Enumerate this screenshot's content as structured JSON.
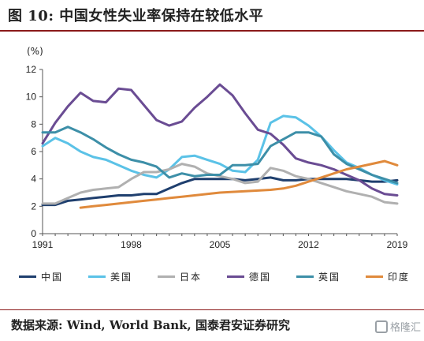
{
  "header": {
    "title": "图 10: 中国女性失业率保持在较低水平"
  },
  "source": {
    "text": "数据来源: Wind, World Bank, 国泰君安证券研究"
  },
  "watermark": {
    "text": "格隆汇",
    "icon": "glh-logo-icon"
  },
  "chart_data": {
    "type": "line",
    "title": "",
    "xlabel": "",
    "ylabel": "",
    "unit": "(%)",
    "xlim": [
      1991,
      2019
    ],
    "ylim": [
      0,
      12
    ],
    "xticks": [
      "1991",
      "1998",
      "2005",
      "2012",
      "2019"
    ],
    "yticks": [
      "0",
      "2",
      "4",
      "6",
      "8",
      "10",
      "12"
    ],
    "grid": false,
    "legend": "bottom",
    "series": [
      {
        "name": "中国",
        "color": "#1f3f6e",
        "x": [
          1991,
          1992,
          1993,
          1994,
          1995,
          1996,
          1997,
          1998,
          1999,
          2000,
          2001,
          2002,
          2003,
          2004,
          2005,
          2006,
          2007,
          2008,
          2009,
          2010,
          2011,
          2012,
          2013,
          2014,
          2015,
          2016,
          2017,
          2018,
          2019
        ],
        "values": [
          2.1,
          2.1,
          2.4,
          2.5,
          2.6,
          2.7,
          2.8,
          2.8,
          2.9,
          2.9,
          3.3,
          3.7,
          4.0,
          4.0,
          4.0,
          4.0,
          3.9,
          4.0,
          4.1,
          3.9,
          3.9,
          4.0,
          4.0,
          4.0,
          4.0,
          3.9,
          3.8,
          3.8,
          3.9
        ]
      },
      {
        "name": "美国",
        "color": "#5bc2e7",
        "x": [
          1991,
          1992,
          1993,
          1994,
          1995,
          1996,
          1997,
          1998,
          1999,
          2000,
          2001,
          2002,
          2003,
          2004,
          2005,
          2006,
          2007,
          2008,
          2009,
          2010,
          2011,
          2012,
          2013,
          2014,
          2015,
          2016,
          2017,
          2018,
          2019
        ],
        "values": [
          6.4,
          7.0,
          6.6,
          6.0,
          5.6,
          5.4,
          5.0,
          4.6,
          4.3,
          4.1,
          4.7,
          5.6,
          5.7,
          5.4,
          5.1,
          4.6,
          4.5,
          5.4,
          8.1,
          8.6,
          8.5,
          7.9,
          7.1,
          6.1,
          5.2,
          4.8,
          4.3,
          3.9,
          3.6
        ]
      },
      {
        "name": "日本",
        "color": "#b0b0b0",
        "x": [
          1991,
          1992,
          1993,
          1994,
          1995,
          1996,
          1997,
          1998,
          1999,
          2000,
          2001,
          2002,
          2003,
          2004,
          2005,
          2006,
          2007,
          2008,
          2009,
          2010,
          2011,
          2012,
          2013,
          2014,
          2015,
          2016,
          2017,
          2018,
          2019
        ],
        "values": [
          2.2,
          2.2,
          2.6,
          3.0,
          3.2,
          3.3,
          3.4,
          4.0,
          4.5,
          4.5,
          4.7,
          5.1,
          4.9,
          4.4,
          4.2,
          4.0,
          3.7,
          3.8,
          4.8,
          4.6,
          4.2,
          4.0,
          3.7,
          3.4,
          3.1,
          2.9,
          2.7,
          2.3,
          2.2
        ]
      },
      {
        "name": "德国",
        "color": "#6a4c93",
        "x": [
          1991,
          1992,
          1993,
          1994,
          1995,
          1996,
          1997,
          1998,
          1999,
          2000,
          2001,
          2002,
          2003,
          2004,
          2005,
          2006,
          2007,
          2008,
          2009,
          2010,
          2011,
          2012,
          2013,
          2014,
          2015,
          2016,
          2017,
          2018,
          2019
        ],
        "values": [
          6.6,
          8.1,
          9.3,
          10.3,
          9.7,
          9.6,
          10.6,
          10.5,
          9.4,
          8.3,
          7.9,
          8.2,
          9.2,
          10.0,
          10.9,
          10.1,
          8.8,
          7.6,
          7.3,
          6.5,
          5.5,
          5.2,
          5.0,
          4.7,
          4.3,
          3.9,
          3.3,
          2.9,
          2.8
        ]
      },
      {
        "name": "英国",
        "color": "#3d8fa8",
        "x": [
          1991,
          1992,
          1993,
          1994,
          1995,
          1996,
          1997,
          1998,
          1999,
          2000,
          2001,
          2002,
          2003,
          2004,
          2005,
          2006,
          2007,
          2008,
          2009,
          2010,
          2011,
          2012,
          2013,
          2014,
          2015,
          2016,
          2017,
          2018,
          2019
        ],
        "values": [
          7.4,
          7.4,
          7.8,
          7.4,
          6.9,
          6.3,
          5.8,
          5.4,
          5.2,
          4.9,
          4.1,
          4.4,
          4.2,
          4.3,
          4.3,
          5.0,
          5.0,
          5.1,
          6.4,
          6.9,
          7.4,
          7.4,
          7.1,
          5.8,
          5.1,
          4.7,
          4.3,
          4.0,
          3.7
        ]
      },
      {
        "name": "印度",
        "color": "#e08a3c",
        "x": [
          1994,
          1995,
          1996,
          1997,
          1998,
          1999,
          2000,
          2001,
          2002,
          2003,
          2004,
          2005,
          2006,
          2007,
          2008,
          2009,
          2010,
          2011,
          2012,
          2013,
          2014,
          2015,
          2016,
          2017,
          2018,
          2019
        ],
        "values": [
          1.9,
          2.0,
          2.1,
          2.2,
          2.3,
          2.4,
          2.5,
          2.6,
          2.7,
          2.8,
          2.9,
          3.0,
          3.05,
          3.1,
          3.15,
          3.2,
          3.3,
          3.5,
          3.8,
          4.1,
          4.4,
          4.7,
          4.9,
          5.1,
          5.3,
          5.0
        ]
      }
    ]
  }
}
